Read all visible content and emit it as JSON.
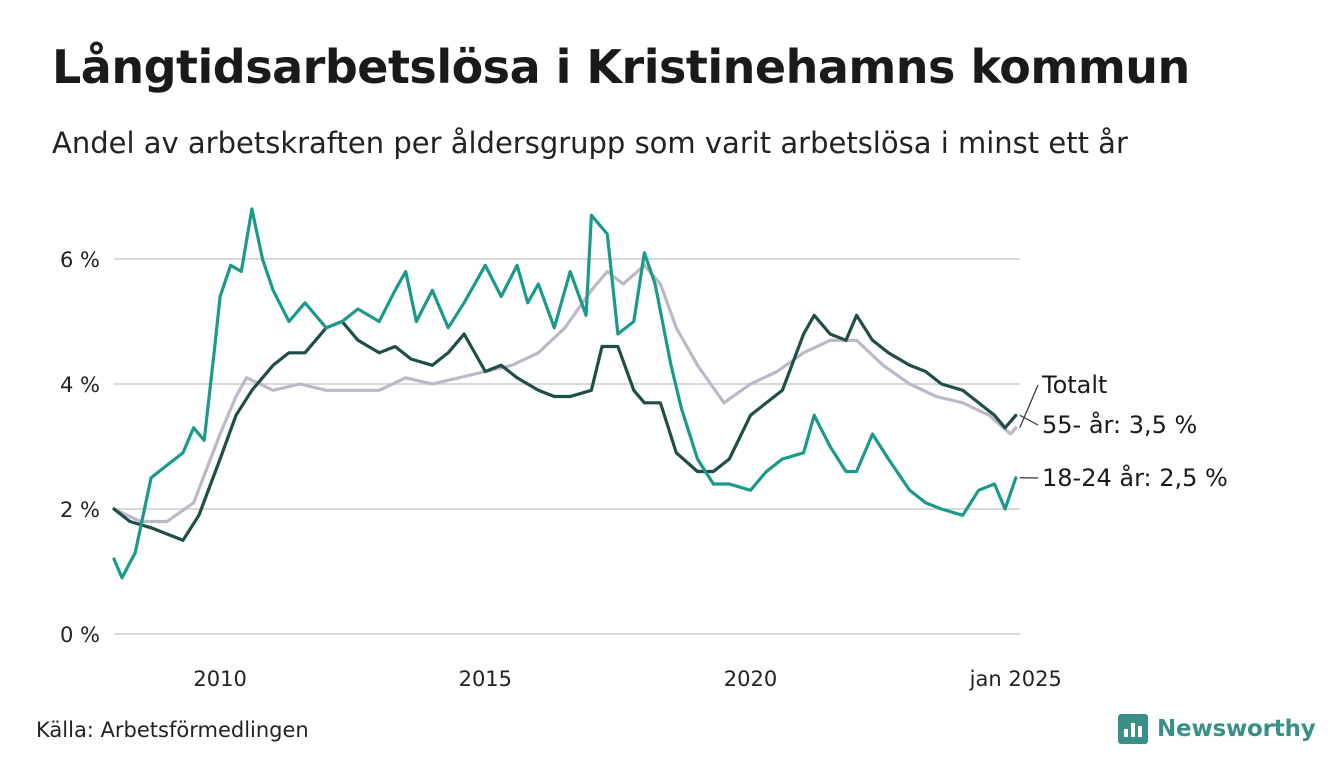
{
  "title": "Långtidsarbetslösa i Kristinehamns kommun",
  "subtitle": "Andel av arbetskraften per åldersgrupp som varit arbetslösa i minst ett år",
  "source": "Källa: Arbetsförmedlingen",
  "brand": "Newsworthy",
  "colors": {
    "totalt": "#bdb8c6",
    "age55": "#1f4e48",
    "age18_24": "#1a9a8a",
    "grid": "#d9d9d9",
    "brand": "#3a8f86"
  },
  "chart_data": {
    "type": "line",
    "title": "Långtidsarbetslösa i Kristinehamns kommun",
    "ylabel": "",
    "xlabel": "",
    "ylim": [
      0,
      7
    ],
    "y_ticks": [
      0,
      2,
      4,
      6
    ],
    "y_tick_labels": [
      "0 %",
      "2 %",
      "4 %",
      "6 %"
    ],
    "x_range": [
      2008.0,
      2025.08
    ],
    "x_ticks": [
      2010,
      2015,
      2020,
      2025.0
    ],
    "x_tick_labels": [
      "2010",
      "2015",
      "2020",
      "jan 2025"
    ],
    "series": [
      {
        "name": "Totalt",
        "label": "Totalt",
        "color_key": "totalt",
        "points": [
          [
            2008.0,
            2.0
          ],
          [
            2008.5,
            1.8
          ],
          [
            2009.0,
            1.8
          ],
          [
            2009.5,
            2.1
          ],
          [
            2010.0,
            3.2
          ],
          [
            2010.3,
            3.8
          ],
          [
            2010.5,
            4.1
          ],
          [
            2011.0,
            3.9
          ],
          [
            2011.5,
            4.0
          ],
          [
            2012.0,
            3.9
          ],
          [
            2012.5,
            3.9
          ],
          [
            2013.0,
            3.9
          ],
          [
            2013.5,
            4.1
          ],
          [
            2014.0,
            4.0
          ],
          [
            2014.5,
            4.1
          ],
          [
            2015.0,
            4.2
          ],
          [
            2015.5,
            4.3
          ],
          [
            2016.0,
            4.5
          ],
          [
            2016.5,
            4.9
          ],
          [
            2017.0,
            5.5
          ],
          [
            2017.3,
            5.8
          ],
          [
            2017.6,
            5.6
          ],
          [
            2018.0,
            5.9
          ],
          [
            2018.3,
            5.6
          ],
          [
            2018.6,
            4.9
          ],
          [
            2019.0,
            4.3
          ],
          [
            2019.5,
            3.7
          ],
          [
            2020.0,
            4.0
          ],
          [
            2020.5,
            4.2
          ],
          [
            2021.0,
            4.5
          ],
          [
            2021.5,
            4.7
          ],
          [
            2022.0,
            4.7
          ],
          [
            2022.5,
            4.3
          ],
          [
            2023.0,
            4.0
          ],
          [
            2023.5,
            3.8
          ],
          [
            2024.0,
            3.7
          ],
          [
            2024.5,
            3.5
          ],
          [
            2024.9,
            3.2
          ],
          [
            2025.0,
            3.3
          ]
        ]
      },
      {
        "name": "55- år",
        "label": "55- år: 3,5 %",
        "color_key": "age55",
        "points": [
          [
            2008.0,
            2.0
          ],
          [
            2008.3,
            1.8
          ],
          [
            2008.7,
            1.7
          ],
          [
            2009.0,
            1.6
          ],
          [
            2009.3,
            1.5
          ],
          [
            2009.6,
            1.9
          ],
          [
            2010.0,
            2.8
          ],
          [
            2010.3,
            3.5
          ],
          [
            2010.6,
            3.9
          ],
          [
            2011.0,
            4.3
          ],
          [
            2011.3,
            4.5
          ],
          [
            2011.6,
            4.5
          ],
          [
            2012.0,
            4.9
          ],
          [
            2012.3,
            5.0
          ],
          [
            2012.6,
            4.7
          ],
          [
            2013.0,
            4.5
          ],
          [
            2013.3,
            4.6
          ],
          [
            2013.6,
            4.4
          ],
          [
            2014.0,
            4.3
          ],
          [
            2014.3,
            4.5
          ],
          [
            2014.6,
            4.8
          ],
          [
            2015.0,
            4.2
          ],
          [
            2015.3,
            4.3
          ],
          [
            2015.6,
            4.1
          ],
          [
            2016.0,
            3.9
          ],
          [
            2016.3,
            3.8
          ],
          [
            2016.6,
            3.8
          ],
          [
            2017.0,
            3.9
          ],
          [
            2017.2,
            4.6
          ],
          [
            2017.5,
            4.6
          ],
          [
            2017.8,
            3.9
          ],
          [
            2018.0,
            3.7
          ],
          [
            2018.3,
            3.7
          ],
          [
            2018.6,
            2.9
          ],
          [
            2019.0,
            2.6
          ],
          [
            2019.3,
            2.6
          ],
          [
            2019.6,
            2.8
          ],
          [
            2020.0,
            3.5
          ],
          [
            2020.3,
            3.7
          ],
          [
            2020.6,
            3.9
          ],
          [
            2021.0,
            4.8
          ],
          [
            2021.2,
            5.1
          ],
          [
            2021.5,
            4.8
          ],
          [
            2021.8,
            4.7
          ],
          [
            2022.0,
            5.1
          ],
          [
            2022.3,
            4.7
          ],
          [
            2022.6,
            4.5
          ],
          [
            2023.0,
            4.3
          ],
          [
            2023.3,
            4.2
          ],
          [
            2023.6,
            4.0
          ],
          [
            2024.0,
            3.9
          ],
          [
            2024.3,
            3.7
          ],
          [
            2024.6,
            3.5
          ],
          [
            2024.8,
            3.3
          ],
          [
            2025.0,
            3.5
          ]
        ]
      },
      {
        "name": "18-24 år",
        "label": "18-24 år: 2,5 %",
        "color_key": "age18_24",
        "points": [
          [
            2008.0,
            1.2
          ],
          [
            2008.15,
            0.9
          ],
          [
            2008.4,
            1.3
          ],
          [
            2008.7,
            2.5
          ],
          [
            2009.0,
            2.7
          ],
          [
            2009.3,
            2.9
          ],
          [
            2009.5,
            3.3
          ],
          [
            2009.7,
            3.1
          ],
          [
            2009.9,
            4.6
          ],
          [
            2010.0,
            5.4
          ],
          [
            2010.2,
            5.9
          ],
          [
            2010.4,
            5.8
          ],
          [
            2010.6,
            6.8
          ],
          [
            2010.8,
            6.0
          ],
          [
            2011.0,
            5.5
          ],
          [
            2011.3,
            5.0
          ],
          [
            2011.6,
            5.3
          ],
          [
            2011.8,
            5.1
          ],
          [
            2012.0,
            4.9
          ],
          [
            2012.3,
            5.0
          ],
          [
            2012.6,
            5.2
          ],
          [
            2013.0,
            5.0
          ],
          [
            2013.3,
            5.5
          ],
          [
            2013.5,
            5.8
          ],
          [
            2013.7,
            5.0
          ],
          [
            2014.0,
            5.5
          ],
          [
            2014.3,
            4.9
          ],
          [
            2014.6,
            5.3
          ],
          [
            2015.0,
            5.9
          ],
          [
            2015.3,
            5.4
          ],
          [
            2015.6,
            5.9
          ],
          [
            2015.8,
            5.3
          ],
          [
            2016.0,
            5.6
          ],
          [
            2016.3,
            4.9
          ],
          [
            2016.6,
            5.8
          ],
          [
            2016.9,
            5.1
          ],
          [
            2017.0,
            6.7
          ],
          [
            2017.3,
            6.4
          ],
          [
            2017.5,
            4.8
          ],
          [
            2017.8,
            5.0
          ],
          [
            2018.0,
            6.1
          ],
          [
            2018.2,
            5.6
          ],
          [
            2018.5,
            4.3
          ],
          [
            2018.7,
            3.6
          ],
          [
            2019.0,
            2.8
          ],
          [
            2019.3,
            2.4
          ],
          [
            2019.6,
            2.4
          ],
          [
            2020.0,
            2.3
          ],
          [
            2020.3,
            2.6
          ],
          [
            2020.6,
            2.8
          ],
          [
            2021.0,
            2.9
          ],
          [
            2021.2,
            3.5
          ],
          [
            2021.5,
            3.0
          ],
          [
            2021.8,
            2.6
          ],
          [
            2022.0,
            2.6
          ],
          [
            2022.3,
            3.2
          ],
          [
            2022.6,
            2.8
          ],
          [
            2023.0,
            2.3
          ],
          [
            2023.3,
            2.1
          ],
          [
            2023.6,
            2.0
          ],
          [
            2024.0,
            1.9
          ],
          [
            2024.3,
            2.3
          ],
          [
            2024.6,
            2.4
          ],
          [
            2024.8,
            2.0
          ],
          [
            2025.0,
            2.5
          ]
        ]
      }
    ]
  }
}
